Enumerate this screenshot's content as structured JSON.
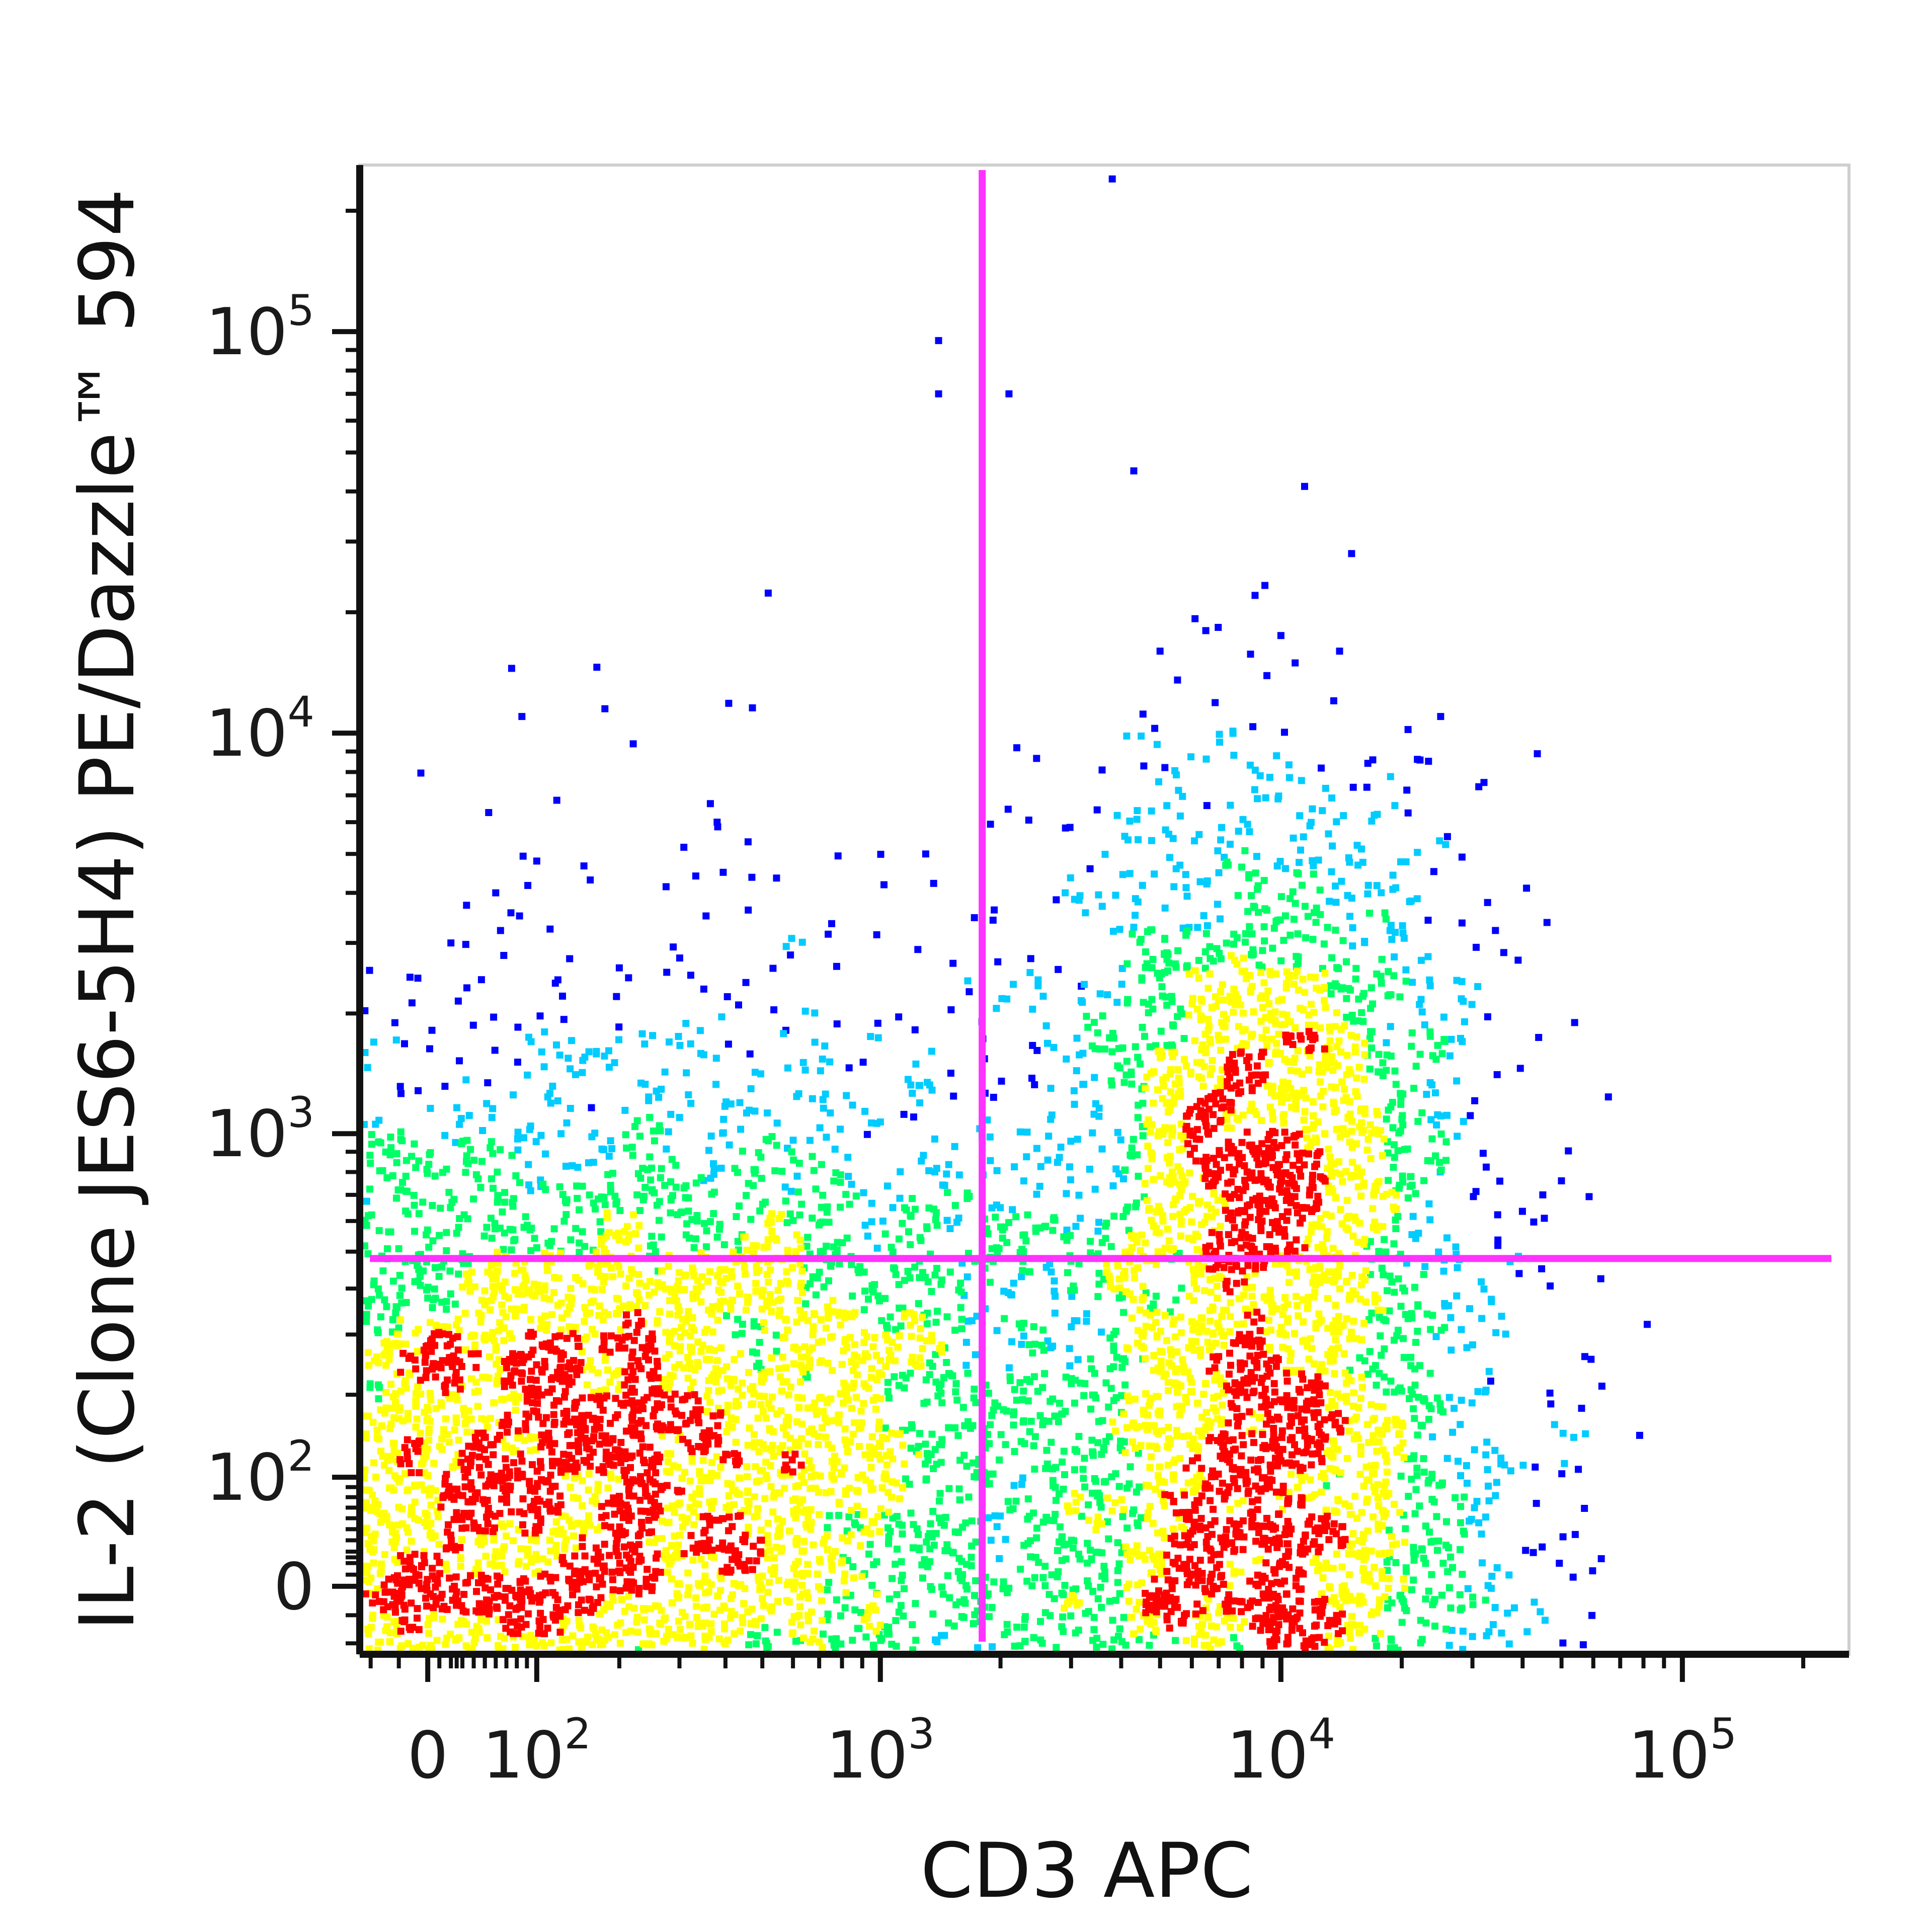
{
  "chart_data": {
    "type": "scatter",
    "plot_style": "flow cytometry density dot plot",
    "xlabel": "CD3 APC",
    "ylabel": "IL-2 (Clone JES6-5H4) PE/Dazzle™ 594",
    "x_scale": "biexponential",
    "y_scale": "biexponential",
    "x_tick_labels": [
      {
        "value": 0,
        "base": "0",
        "exp": ""
      },
      {
        "value": 100,
        "base": "10",
        "exp": "2"
      },
      {
        "value": 1000,
        "base": "10",
        "exp": "3"
      },
      {
        "value": 10000,
        "base": "10",
        "exp": "4"
      },
      {
        "value": 100000,
        "base": "10",
        "exp": "5"
      }
    ],
    "y_tick_labels": [
      {
        "value": 0,
        "base": "0",
        "exp": ""
      },
      {
        "value": 100,
        "base": "10",
        "exp": "2"
      },
      {
        "value": 1000,
        "base": "10",
        "exp": "3"
      },
      {
        "value": 10000,
        "base": "10",
        "exp": "4"
      },
      {
        "value": 100000,
        "base": "10",
        "exp": "5"
      }
    ],
    "xlim": [
      -60,
      260000
    ],
    "ylim": [
      -60,
      260000
    ],
    "quadrant_gates": {
      "x": 1800,
      "y": 480,
      "color": "#ff33ff"
    },
    "density_colors": [
      "#0000ff",
      "#00ccff",
      "#00ff66",
      "#ffff00",
      "#ff0000"
    ],
    "populations": [
      {
        "name": "",
        "center": [
          80,
          75
        ],
        "spread_decades": [
          1.2,
          1.0
        ],
        "events": 6500
      },
      {
        "name": "",
        "center": [
          9000,
          60
        ],
        "spread_decades": [
          0.55,
          1.0
        ],
        "events": 3200
      },
      {
        "name": "",
        "center": [
          9000,
          1500
        ],
        "spread_decades": [
          0.45,
          0.7
        ],
        "events": 1300
      },
      {
        "name": "",
        "center": [
          700,
          200
        ],
        "spread_decades": [
          0.8,
          0.9
        ],
        "events": 900
      }
    ],
    "outlier_events": [
      [
        3800,
        240000
      ],
      [
        1400,
        95000
      ],
      [
        1400,
        70000
      ],
      [
        2100,
        70000
      ],
      [
        4300,
        45000
      ],
      [
        15000,
        28000
      ],
      [
        75,
        14500
      ],
      [
        85,
        11000
      ],
      [
        180,
        11500
      ],
      [
        5000,
        16000
      ],
      [
        6500,
        18000
      ],
      [
        10000,
        17500
      ],
      [
        14000,
        16000
      ],
      [
        25000,
        11000
      ],
      [
        60,
        4000
      ],
      [
        100,
        4800
      ],
      [
        20,
        3000
      ],
      [
        380,
        6000
      ],
      [
        1300,
        5000
      ],
      [
        200,
        2600
      ]
    ],
    "grid": false,
    "legend": "none"
  }
}
